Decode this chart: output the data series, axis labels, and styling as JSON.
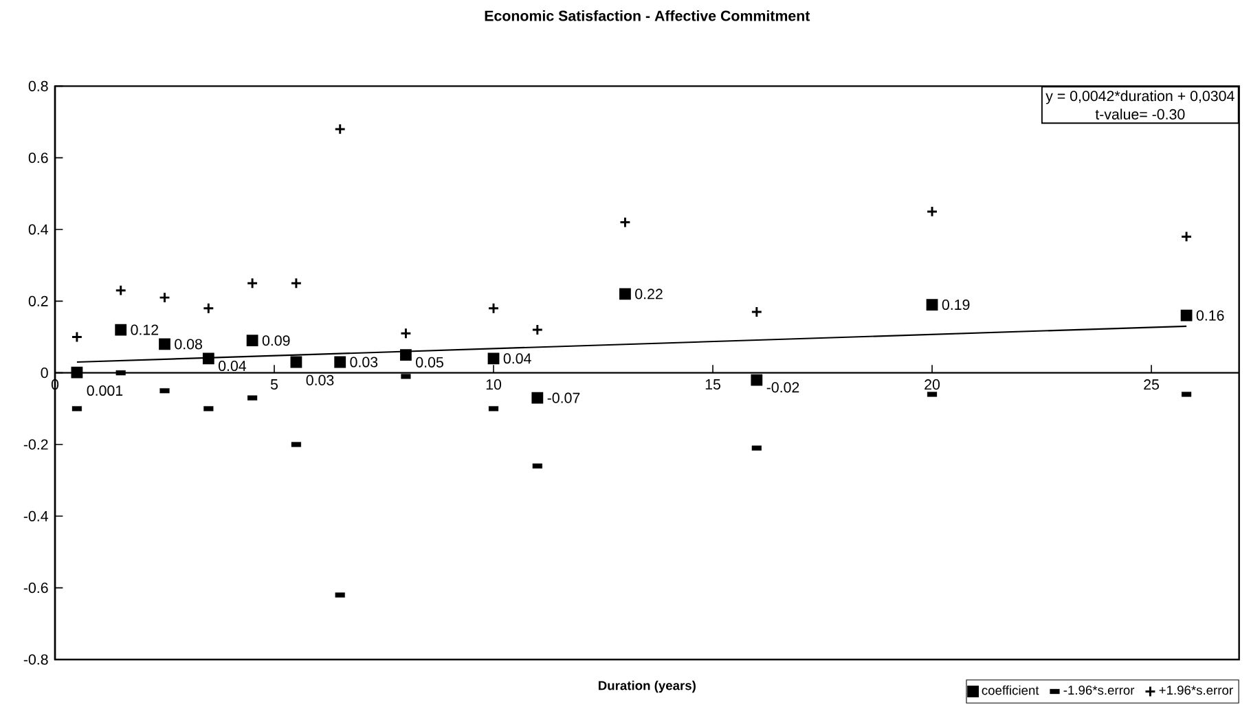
{
  "chart_data": {
    "type": "scatter",
    "title": "Economic Satisfaction - Affective Commitment",
    "xlabel": "Duration (years)",
    "x": [
      0.5,
      1.5,
      2.5,
      3.5,
      4.5,
      5.5,
      6.5,
      8,
      10,
      11,
      13,
      16,
      20,
      25.8
    ],
    "series": [
      {
        "name": "coefficient",
        "color": "#000000",
        "marker": "square",
        "data_labels": true,
        "values": [
          0.001,
          0.12,
          0.08,
          0.04,
          0.09,
          0.03,
          0.03,
          0.05,
          0.04,
          -0.07,
          0.22,
          -0.02,
          0.19,
          0.16
        ]
      },
      {
        "name": "-1.96*s.error",
        "color": "#000000",
        "marker": "square",
        "values": [
          -0.1,
          0.0,
          -0.05,
          -0.1,
          -0.07,
          -0.2,
          -0.62,
          -0.01,
          -0.1,
          -0.26,
          null,
          -0.21,
          -0.06,
          -0.06
        ]
      },
      {
        "name": "+1.96*s.error",
        "color": "#000000",
        "marker": "cross",
        "values": [
          0.1,
          0.23,
          0.21,
          0.18,
          0.25,
          0.25,
          0.68,
          0.11,
          0.18,
          0.12,
          0.42,
          0.17,
          0.45,
          0.38
        ]
      },
      {
        "type": "line",
        "color": "#000000",
        "x": [
          0.5,
          25.8
        ],
        "values": [
          0.03,
          0.13
        ]
      }
    ],
    "annotations": [
      "y = 0,0042*duration + 0,0304",
      "t-value= -0.30"
    ],
    "xlim": [
      0,
      27
    ],
    "ylim": [
      -0.8,
      0.8
    ],
    "xticks": [
      0,
      5,
      10,
      15,
      20,
      25
    ],
    "yticks": [
      -0.8,
      -0.6,
      -0.4,
      -0.2,
      0,
      0.2,
      0.4,
      0.6,
      0.8
    ],
    "grid": false,
    "legend": "bottom right"
  }
}
